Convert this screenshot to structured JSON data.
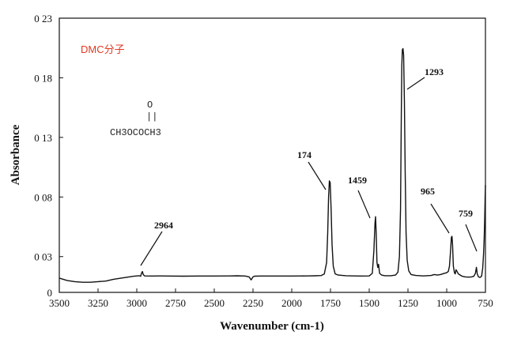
{
  "chart_data": {
    "type": "line",
    "title": "DMC分子",
    "xlabel": "Wavenumber (cm-1)",
    "ylabel": "Absorbance",
    "xlim": [
      3500,
      750
    ],
    "ylim": [
      0,
      0.23
    ],
    "x_reversed": true,
    "grid": false,
    "legend": "none",
    "line_color": "#111111",
    "title_color": "#e23a22",
    "x_ticks": [
      3500,
      3250,
      3000,
      2750,
      2500,
      2250,
      2000,
      1750,
      1500,
      1250,
      1000,
      750
    ],
    "x_tick_labels": [
      "3500",
      "3250",
      "3000",
      "2750",
      "2500",
      "2250",
      "2000",
      "1750",
      "1500",
      "1250",
      "1000",
      "750"
    ],
    "y_ticks": [
      0,
      0.03,
      0.08,
      0.13,
      0.18,
      0.23
    ],
    "y_tick_labels": [
      "0",
      "0 03",
      "0 08",
      "0 13",
      "0 18",
      "0 23"
    ],
    "structure": {
      "carbonyl_o": "O",
      "bond": "||",
      "formula": "CH3OCOCH3"
    },
    "annotations": [
      {
        "label": "2964",
        "x": 2964,
        "y": 0.024
      },
      {
        "label": "174",
        "x": 1755,
        "y": 0.098
      },
      {
        "label": "1459",
        "x": 1459,
        "y": 0.067
      },
      {
        "label": "1293",
        "x": 1280,
        "y": 0.186
      },
      {
        "label": "965",
        "x": 975,
        "y": 0.041
      },
      {
        "label": "759",
        "x": 850,
        "y": 0.033
      }
    ],
    "series": [
      {
        "points": [
          [
            3500,
            0.012
          ],
          [
            3450,
            0.01
          ],
          [
            3400,
            0.009
          ],
          [
            3350,
            0.0085
          ],
          [
            3300,
            0.0085
          ],
          [
            3250,
            0.009
          ],
          [
            3200,
            0.0095
          ],
          [
            3150,
            0.011
          ],
          [
            3100,
            0.012
          ],
          [
            3050,
            0.013
          ],
          [
            3020,
            0.0135
          ],
          [
            3000,
            0.0138
          ],
          [
            2985,
            0.014
          ],
          [
            2975,
            0.0135
          ],
          [
            2970,
            0.016
          ],
          [
            2964,
            0.0175
          ],
          [
            2958,
            0.015
          ],
          [
            2950,
            0.0138
          ],
          [
            2900,
            0.0137
          ],
          [
            2850,
            0.0138
          ],
          [
            2800,
            0.0137
          ],
          [
            2700,
            0.0136
          ],
          [
            2600,
            0.0137
          ],
          [
            2500,
            0.0137
          ],
          [
            2400,
            0.0138
          ],
          [
            2350,
            0.0139
          ],
          [
            2300,
            0.0137
          ],
          [
            2275,
            0.013
          ],
          [
            2262,
            0.0105
          ],
          [
            2250,
            0.013
          ],
          [
            2240,
            0.0136
          ],
          [
            2200,
            0.0137
          ],
          [
            2100,
            0.0137
          ],
          [
            2000,
            0.0137
          ],
          [
            1900,
            0.0138
          ],
          [
            1850,
            0.0139
          ],
          [
            1810,
            0.0141
          ],
          [
            1790,
            0.0155
          ],
          [
            1775,
            0.025
          ],
          [
            1768,
            0.05
          ],
          [
            1762,
            0.08
          ],
          [
            1757,
            0.0935
          ],
          [
            1752,
            0.092
          ],
          [
            1746,
            0.07
          ],
          [
            1740,
            0.04
          ],
          [
            1732,
            0.022
          ],
          [
            1720,
            0.0155
          ],
          [
            1700,
            0.0145
          ],
          [
            1650,
            0.014
          ],
          [
            1600,
            0.0138
          ],
          [
            1550,
            0.0137
          ],
          [
            1500,
            0.0138
          ],
          [
            1480,
            0.016
          ],
          [
            1470,
            0.035
          ],
          [
            1463,
            0.058
          ],
          [
            1459,
            0.0635
          ],
          [
            1455,
            0.05
          ],
          [
            1450,
            0.025
          ],
          [
            1445,
            0.021
          ],
          [
            1440,
            0.0235
          ],
          [
            1433,
            0.016
          ],
          [
            1420,
            0.0145
          ],
          [
            1400,
            0.014
          ],
          [
            1360,
            0.014
          ],
          [
            1330,
            0.0145
          ],
          [
            1315,
            0.017
          ],
          [
            1305,
            0.03
          ],
          [
            1298,
            0.07
          ],
          [
            1293,
            0.15
          ],
          [
            1290,
            0.19
          ],
          [
            1286,
            0.2035
          ],
          [
            1282,
            0.2045
          ],
          [
            1278,
            0.199
          ],
          [
            1273,
            0.16
          ],
          [
            1268,
            0.1
          ],
          [
            1262,
            0.05
          ],
          [
            1255,
            0.027
          ],
          [
            1245,
            0.018
          ],
          [
            1230,
            0.015
          ],
          [
            1200,
            0.0142
          ],
          [
            1150,
            0.0138
          ],
          [
            1100,
            0.0142
          ],
          [
            1080,
            0.015
          ],
          [
            1060,
            0.0145
          ],
          [
            1040,
            0.015
          ],
          [
            1020,
            0.0158
          ],
          [
            1000,
            0.0165
          ],
          [
            990,
            0.0175
          ],
          [
            982,
            0.022
          ],
          [
            975,
            0.035
          ],
          [
            970,
            0.0462
          ],
          [
            966,
            0.047
          ],
          [
            962,
            0.04
          ],
          [
            957,
            0.022
          ],
          [
            950,
            0.0165
          ],
          [
            945,
            0.0155
          ],
          [
            940,
            0.019
          ],
          [
            935,
            0.018
          ],
          [
            925,
            0.0155
          ],
          [
            900,
            0.0135
          ],
          [
            880,
            0.013
          ],
          [
            860,
            0.0128
          ],
          [
            840,
            0.013
          ],
          [
            825,
            0.0135
          ],
          [
            815,
            0.016
          ],
          [
            808,
            0.021
          ],
          [
            803,
            0.0155
          ],
          [
            795,
            0.013
          ],
          [
            785,
            0.0125
          ],
          [
            775,
            0.0135
          ],
          [
            768,
            0.02
          ],
          [
            762,
            0.032
          ],
          [
            758,
            0.045
          ],
          [
            755,
            0.06
          ],
          [
            752,
            0.08
          ],
          [
            750,
            0.09
          ]
        ]
      }
    ]
  }
}
